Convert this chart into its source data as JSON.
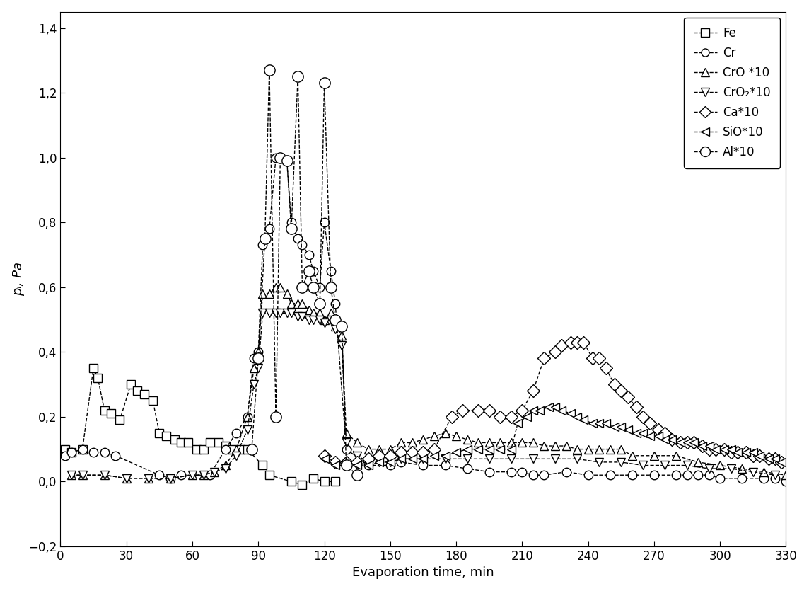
{
  "xlabel": "Evaporation time, min",
  "ylabel": "pᵢ, Pa",
  "xlim": [
    0,
    330
  ],
  "ylim": [
    -0.2,
    1.45
  ],
  "xticks": [
    0,
    30,
    60,
    90,
    120,
    150,
    180,
    210,
    240,
    270,
    300,
    330
  ],
  "yticks": [
    -0.2,
    0.0,
    0.2,
    0.4,
    0.6,
    0.8,
    1.0,
    1.2,
    1.4
  ],
  "series": {
    "Fe": {
      "x": [
        2,
        5,
        10,
        15,
        17,
        20,
        23,
        27,
        32,
        35,
        38,
        42,
        45,
        48,
        52,
        55,
        58,
        62,
        65,
        68,
        72,
        75,
        78,
        82,
        85,
        92,
        95,
        105,
        110,
        115,
        120,
        125
      ],
      "y": [
        0.1,
        0.09,
        0.1,
        0.35,
        0.32,
        0.22,
        0.21,
        0.19,
        0.3,
        0.28,
        0.27,
        0.25,
        0.15,
        0.14,
        0.13,
        0.12,
        0.12,
        0.1,
        0.1,
        0.12,
        0.12,
        0.11,
        0.1,
        0.1,
        0.1,
        0.05,
        0.02,
        0.0,
        -0.01,
        0.01,
        0.0,
        0.0
      ],
      "marker": "s",
      "linestyle": "--",
      "markersize": 9
    },
    "Cr": {
      "x": [
        2,
        5,
        10,
        15,
        20,
        25,
        45,
        50,
        55,
        68,
        75,
        80,
        85,
        88,
        90,
        92,
        95,
        98,
        100,
        103,
        105,
        108,
        110,
        113,
        115,
        118,
        120,
        123,
        125,
        130,
        140,
        150,
        155,
        165,
        175,
        185,
        195,
        205,
        210,
        215,
        220,
        230,
        240,
        250,
        260,
        270,
        280,
        285,
        290,
        295,
        300,
        310,
        320,
        325,
        330
      ],
      "y": [
        0.08,
        0.09,
        0.1,
        0.09,
        0.09,
        0.08,
        0.02,
        0.01,
        0.02,
        0.02,
        0.1,
        0.15,
        0.2,
        0.38,
        0.4,
        0.73,
        0.78,
        1.0,
        1.0,
        0.99,
        0.8,
        0.75,
        0.73,
        0.7,
        0.65,
        0.6,
        0.8,
        0.65,
        0.55,
        0.1,
        0.05,
        0.05,
        0.06,
        0.05,
        0.05,
        0.04,
        0.03,
        0.03,
        0.03,
        0.02,
        0.02,
        0.03,
        0.02,
        0.02,
        0.02,
        0.02,
        0.02,
        0.02,
        0.02,
        0.02,
        0.01,
        0.01,
        0.01,
        0.01,
        0.0
      ],
      "marker": "o",
      "linestyle": "--",
      "markersize": 9
    },
    "CrO": {
      "x": [
        5,
        10,
        20,
        30,
        40,
        50,
        60,
        65,
        70,
        75,
        80,
        85,
        88,
        90,
        92,
        95,
        98,
        100,
        103,
        105,
        108,
        110,
        113,
        115,
        118,
        120,
        123,
        125,
        128,
        130,
        135,
        140,
        145,
        150,
        155,
        160,
        165,
        170,
        175,
        180,
        185,
        190,
        195,
        200,
        205,
        210,
        215,
        220,
        225,
        230,
        235,
        240,
        245,
        250,
        255,
        260,
        270,
        280,
        290,
        300,
        310,
        320,
        330
      ],
      "y": [
        0.02,
        0.02,
        0.02,
        0.01,
        0.01,
        0.01,
        0.02,
        0.02,
        0.03,
        0.05,
        0.1,
        0.2,
        0.35,
        0.4,
        0.58,
        0.58,
        0.6,
        0.6,
        0.58,
        0.55,
        0.55,
        0.55,
        0.53,
        0.52,
        0.52,
        0.5,
        0.52,
        0.48,
        0.45,
        0.15,
        0.12,
        0.1,
        0.1,
        0.1,
        0.12,
        0.12,
        0.13,
        0.14,
        0.15,
        0.14,
        0.13,
        0.12,
        0.12,
        0.12,
        0.12,
        0.12,
        0.12,
        0.11,
        0.11,
        0.11,
        0.1,
        0.1,
        0.1,
        0.1,
        0.1,
        0.08,
        0.08,
        0.08,
        0.06,
        0.05,
        0.04,
        0.03,
        0.02
      ],
      "marker": "^",
      "linestyle": "--",
      "markersize": 9,
      "label": "CrO *10"
    },
    "CrO2": {
      "x": [
        5,
        10,
        20,
        30,
        40,
        50,
        60,
        65,
        70,
        75,
        80,
        85,
        88,
        90,
        92,
        95,
        98,
        100,
        103,
        105,
        108,
        110,
        113,
        115,
        118,
        120,
        123,
        125,
        128,
        130,
        135,
        140,
        145,
        150,
        155,
        165,
        175,
        185,
        195,
        205,
        215,
        225,
        235,
        245,
        255,
        265,
        275,
        285,
        295,
        305,
        315,
        325
      ],
      "y": [
        0.02,
        0.02,
        0.02,
        0.01,
        0.01,
        0.01,
        0.02,
        0.02,
        0.03,
        0.04,
        0.08,
        0.16,
        0.3,
        0.35,
        0.52,
        0.52,
        0.52,
        0.52,
        0.52,
        0.52,
        0.51,
        0.51,
        0.5,
        0.5,
        0.5,
        0.49,
        0.5,
        0.47,
        0.42,
        0.12,
        0.08,
        0.06,
        0.06,
        0.06,
        0.07,
        0.07,
        0.07,
        0.07,
        0.07,
        0.07,
        0.07,
        0.07,
        0.07,
        0.06,
        0.06,
        0.05,
        0.05,
        0.05,
        0.04,
        0.04,
        0.03,
        0.02
      ],
      "marker": "v",
      "linestyle": "--",
      "markersize": 9,
      "label": "CrO₂*10"
    },
    "Ca": {
      "x": [
        120,
        125,
        130,
        135,
        140,
        145,
        150,
        155,
        160,
        165,
        170,
        178,
        183,
        190,
        195,
        200,
        205,
        210,
        215,
        220,
        225,
        228,
        232,
        235,
        238,
        242,
        245,
        248,
        252,
        255,
        258,
        262,
        265,
        268,
        272,
        275,
        278,
        282,
        285,
        288,
        292,
        295,
        298,
        302,
        305,
        308,
        312,
        315,
        318,
        322,
        325,
        328
      ],
      "y": [
        0.08,
        0.06,
        0.06,
        0.06,
        0.07,
        0.08,
        0.08,
        0.09,
        0.09,
        0.09,
        0.1,
        0.2,
        0.22,
        0.22,
        0.22,
        0.2,
        0.2,
        0.22,
        0.28,
        0.38,
        0.4,
        0.42,
        0.43,
        0.43,
        0.43,
        0.38,
        0.38,
        0.35,
        0.3,
        0.28,
        0.26,
        0.23,
        0.2,
        0.18,
        0.16,
        0.15,
        0.13,
        0.12,
        0.12,
        0.12,
        0.11,
        0.1,
        0.1,
        0.1,
        0.09,
        0.09,
        0.09,
        0.08,
        0.08,
        0.07,
        0.07,
        0.06
      ],
      "marker": "D",
      "linestyle": "--",
      "markersize": 9,
      "label": "Ca*10"
    },
    "SiO": {
      "x": [
        120,
        125,
        130,
        135,
        140,
        145,
        150,
        155,
        160,
        165,
        170,
        175,
        180,
        185,
        190,
        195,
        200,
        205,
        208,
        212,
        215,
        218,
        222,
        225,
        228,
        232,
        235,
        238,
        242,
        245,
        248,
        252,
        255,
        258,
        262,
        265,
        268,
        272,
        275,
        278,
        282,
        285,
        288,
        292,
        295,
        298,
        302,
        305,
        308,
        312,
        315,
        318,
        322,
        325,
        328
      ],
      "y": [
        0.07,
        0.05,
        0.05,
        0.05,
        0.05,
        0.06,
        0.06,
        0.07,
        0.07,
        0.07,
        0.08,
        0.08,
        0.09,
        0.1,
        0.1,
        0.1,
        0.1,
        0.1,
        0.18,
        0.2,
        0.22,
        0.22,
        0.23,
        0.23,
        0.22,
        0.21,
        0.2,
        0.19,
        0.18,
        0.18,
        0.18,
        0.17,
        0.17,
        0.16,
        0.15,
        0.15,
        0.14,
        0.14,
        0.13,
        0.13,
        0.12,
        0.12,
        0.12,
        0.11,
        0.11,
        0.1,
        0.1,
        0.1,
        0.09,
        0.09,
        0.09,
        0.08,
        0.07,
        0.07,
        0.06
      ],
      "marker": "<",
      "linestyle": "--",
      "markersize": 9,
      "label": "SiO*10"
    },
    "Al": {
      "x": [
        87,
        90,
        93,
        95,
        98,
        100,
        103,
        105,
        108,
        110,
        113,
        115,
        118,
        120,
        123,
        125,
        128,
        130,
        135
      ],
      "y": [
        0.1,
        0.38,
        0.75,
        1.27,
        0.2,
        1.0,
        0.99,
        0.78,
        1.25,
        0.6,
        0.65,
        0.6,
        0.55,
        1.23,
        0.6,
        0.5,
        0.48,
        0.05,
        0.02
      ],
      "marker": "o",
      "linestyle": "--",
      "markersize": 11,
      "label": "Al*10"
    }
  },
  "legend_labels": [
    "Fe",
    "Cr",
    "CrO *10",
    "CrO₂*10",
    "Ca*10",
    "SiO*10",
    "Al*10"
  ],
  "legend_markers": [
    "s",
    "o",
    "^",
    "v",
    "D",
    "<",
    "o"
  ],
  "legend_markersizes": [
    8,
    8,
    8,
    8,
    8,
    8,
    10
  ]
}
